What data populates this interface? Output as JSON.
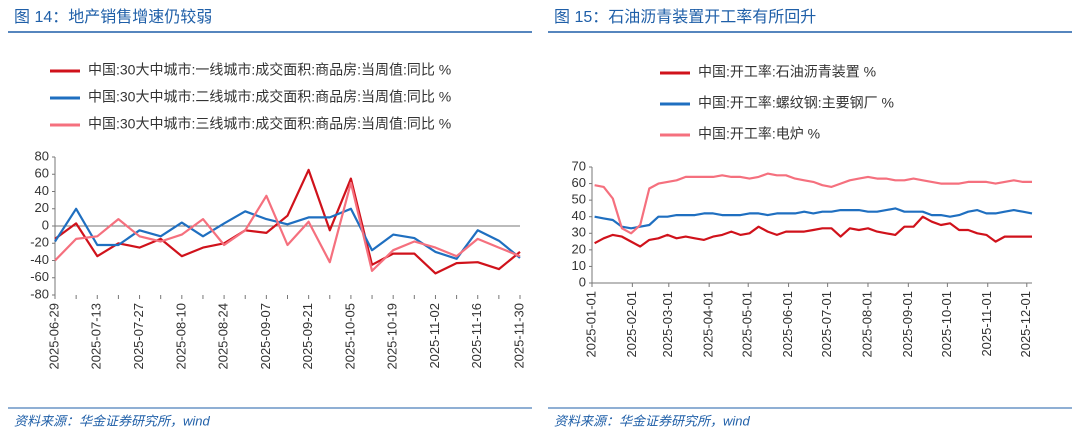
{
  "chart_data": [
    {
      "type": "line",
      "title": "图 14：地产销售增速仍较弱",
      "source": "资料来源：华金证券研究所，wind",
      "categories": [
        "2025-06-29",
        null,
        "2025-07-13",
        null,
        "2025-07-27",
        null,
        "2025-08-10",
        null,
        "2025-08-24",
        null,
        "2025-09-07",
        null,
        "2025-09-21",
        null,
        "2025-10-05",
        null,
        "2025-10-19",
        null,
        "2025-11-02",
        null,
        "2025-11-16",
        null,
        "2025-11-30"
      ],
      "series": [
        {
          "name": "中国:30大中城市:一线城市:成交面积:商品房:当周值:同比 %",
          "color": "#d0121b",
          "values": [
            -15,
            3,
            -35,
            -20,
            -25,
            -15,
            -35,
            -25,
            -20,
            -5,
            -8,
            12,
            65,
            -5,
            55,
            -45,
            -32,
            -32,
            -55,
            -43,
            -42,
            -50,
            -30
          ]
        },
        {
          "name": "中国:30大中城市:二线城市:成交面积:商品房:当周值:同比 %",
          "color": "#1f6fc0",
          "values": [
            -18,
            20,
            -22,
            -22,
            -5,
            -12,
            4,
            -12,
            3,
            17,
            8,
            2,
            10,
            10,
            20,
            -28,
            -10,
            -14,
            -30,
            -38,
            -5,
            -17,
            -37
          ]
        },
        {
          "name": "中国:30大中城市:三线城市:成交面积:商品房:当周值:同比 %",
          "color": "#f5707e",
          "values": [
            -40,
            -15,
            -12,
            8,
            -12,
            -18,
            -10,
            8,
            -22,
            -5,
            35,
            -22,
            5,
            -42,
            50,
            -52,
            -28,
            -18,
            -25,
            -35,
            -15,
            -25,
            -35
          ]
        }
      ],
      "ylim": [
        -80,
        80
      ],
      "yticks": [
        -80,
        -60,
        -40,
        -20,
        0,
        20,
        40,
        60,
        80
      ]
    },
    {
      "type": "line",
      "title": "图 15：石油沥青装置开工率有所回升",
      "source": "资料来源：华金证券研究所，wind",
      "x": [
        "2025-01-03",
        "2025-01-10",
        "2025-01-17",
        "2025-01-24",
        "2025-01-31",
        "2025-02-07",
        "2025-02-14",
        "2025-02-21",
        "2025-02-28",
        "2025-03-07",
        "2025-03-14",
        "2025-03-21",
        "2025-03-28",
        "2025-04-04",
        "2025-04-11",
        "2025-04-18",
        "2025-04-25",
        "2025-05-02",
        "2025-05-09",
        "2025-05-16",
        "2025-05-23",
        "2025-05-30",
        "2025-06-06",
        "2025-06-13",
        "2025-06-20",
        "2025-06-27",
        "2025-07-04",
        "2025-07-11",
        "2025-07-18",
        "2025-07-25",
        "2025-08-01",
        "2025-08-08",
        "2025-08-15",
        "2025-08-22",
        "2025-08-29",
        "2025-09-05",
        "2025-09-12",
        "2025-09-19",
        "2025-09-26",
        "2025-10-03",
        "2025-10-10",
        "2025-10-17",
        "2025-10-24",
        "2025-10-31",
        "2025-11-07",
        "2025-11-14",
        "2025-11-21",
        "2025-11-28",
        "2025-12-05"
      ],
      "series": [
        {
          "name": "中国:开工率:石油沥青装置 %",
          "color": "#d0121b",
          "values": [
            24,
            27,
            29,
            28,
            25,
            22,
            26,
            27,
            29,
            27,
            28,
            27,
            26,
            28,
            29,
            31,
            29,
            30,
            34,
            31,
            29,
            31,
            31,
            31,
            32,
            33,
            33,
            28,
            33,
            32,
            33,
            31,
            30,
            29,
            34,
            34,
            40,
            37,
            35,
            36,
            32,
            32,
            30,
            29,
            25,
            28,
            28,
            28,
            28
          ]
        },
        {
          "name": "中国:开工率:螺纹钢:主要钢厂 %",
          "color": "#1f6fc0",
          "values": [
            40,
            39,
            38,
            34,
            33,
            34,
            35,
            40,
            40,
            41,
            41,
            41,
            42,
            42,
            41,
            41,
            41,
            42,
            42,
            41,
            42,
            42,
            42,
            43,
            42,
            43,
            43,
            44,
            44,
            44,
            43,
            43,
            44,
            45,
            43,
            43,
            43,
            41,
            41,
            40,
            41,
            43,
            44,
            42,
            42,
            43,
            44,
            43,
            42
          ]
        },
        {
          "name": "中国:开工率:电炉 %",
          "color": "#f5707e",
          "values": [
            59,
            58,
            51,
            33,
            30,
            35,
            57,
            60,
            61,
            62,
            64,
            64,
            64,
            64,
            65,
            64,
            64,
            63,
            64,
            66,
            65,
            65,
            63,
            62,
            61,
            59,
            58,
            60,
            62,
            63,
            64,
            63,
            63,
            62,
            62,
            63,
            62,
            61,
            60,
            60,
            60,
            61,
            61,
            61,
            60,
            61,
            62,
            61,
            61
          ]
        }
      ],
      "xlim": [
        "2025-01-01",
        "2025-12-05"
      ],
      "xticks": [
        "2025-01-01",
        "2025-02-01",
        "2025-03-01",
        "2025-04-01",
        "2025-05-01",
        "2025-06-01",
        "2025-07-01",
        "2025-08-01",
        "2025-09-01",
        "2025-10-01",
        "2025-11-01",
        "2025-12-01"
      ],
      "ylim": [
        0,
        70
      ],
      "yticks": [
        0,
        10,
        20,
        30,
        40,
        50,
        60,
        70
      ]
    }
  ]
}
